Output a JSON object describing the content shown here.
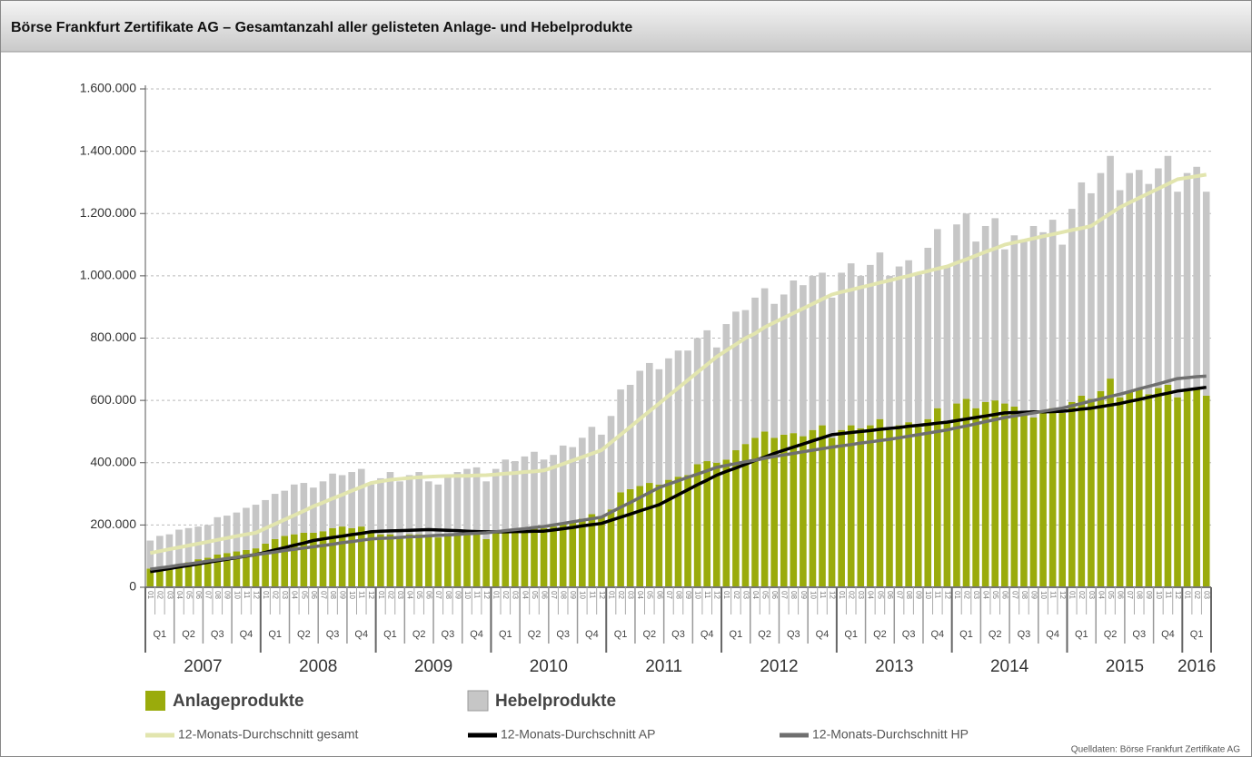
{
  "chart_data": {
    "type": "bar",
    "stacked": true,
    "title": "Börse Frankfurt Zertifikate AG – Gesamtanzahl aller gelisteten Anlage- und Hebelprodukte",
    "source": "Quelldaten: Börse Frankfurt Zertifikate AG",
    "grid": true,
    "ylim": [
      0,
      1600000
    ],
    "yticks": [
      0,
      {
        "value": 200000,
        "label": "200.000"
      },
      {
        "value": 400000,
        "label": "400.000"
      },
      {
        "value": 600000,
        "label": "600.000"
      },
      {
        "value": 800000,
        "label": "800.000"
      },
      {
        "value": 1000000,
        "label": "1.000.000"
      },
      {
        "value": 1200000,
        "label": "1.200.000"
      },
      {
        "value": 1400000,
        "label": "1.400.000"
      },
      {
        "value": 1600000,
        "label": "1.600.000"
      }
    ],
    "categories": [
      "01",
      "02",
      "03",
      "04",
      "05",
      "06",
      "07",
      "08",
      "09",
      "10",
      "11",
      "12",
      "01",
      "02",
      "03",
      "04",
      "05",
      "06",
      "07",
      "08",
      "09",
      "10",
      "11",
      "12",
      "01",
      "02",
      "03",
      "04",
      "05",
      "06",
      "07",
      "08",
      "09",
      "10",
      "11",
      "12",
      "01",
      "02",
      "03",
      "04",
      "05",
      "06",
      "07",
      "08",
      "09",
      "10",
      "11",
      "12",
      "01",
      "02",
      "03",
      "04",
      "05",
      "06",
      "07",
      "08",
      "09",
      "10",
      "11",
      "12",
      "01",
      "02",
      "03",
      "04",
      "05",
      "06",
      "07",
      "08",
      "09",
      "10",
      "11",
      "12",
      "01",
      "02",
      "03",
      "04",
      "05",
      "06",
      "07",
      "08",
      "09",
      "10",
      "11",
      "12",
      "01",
      "02",
      "03",
      "04",
      "05",
      "06",
      "07",
      "08",
      "09",
      "10",
      "11",
      "12",
      "01",
      "02",
      "03",
      "04",
      "05",
      "06",
      "07",
      "08",
      "09",
      "10",
      "11",
      "12",
      "01",
      "02",
      "03"
    ],
    "quarters": [
      "Q1",
      "Q2",
      "Q3",
      "Q4",
      "Q1",
      "Q2",
      "Q3",
      "Q4",
      "Q1",
      "Q2",
      "Q3",
      "Q4",
      "Q1",
      "Q2",
      "Q3",
      "Q4",
      "Q1",
      "Q2",
      "Q3",
      "Q4",
      "Q1",
      "Q2",
      "Q3",
      "Q4",
      "Q1",
      "Q2",
      "Q3",
      "Q4",
      "Q1",
      "Q2",
      "Q3",
      "Q4",
      "Q1",
      "Q2",
      "Q3",
      "Q4",
      "Q1"
    ],
    "years": [
      "2007",
      "2008",
      "2009",
      "2010",
      "2011",
      "2012",
      "2013",
      "2014",
      "2015",
      "2016"
    ],
    "series": [
      {
        "name": "Anlageprodukte",
        "kind": "bar",
        "color": "#9aab0c",
        "values": [
          60000,
          65000,
          70000,
          75000,
          80000,
          90000,
          95000,
          105000,
          110000,
          115000,
          120000,
          125000,
          140000,
          155000,
          165000,
          170000,
          175000,
          175000,
          180000,
          190000,
          195000,
          190000,
          195000,
          180000,
          170000,
          170000,
          160000,
          170000,
          170000,
          165000,
          160000,
          165000,
          170000,
          170000,
          175000,
          155000,
          175000,
          180000,
          185000,
          190000,
          195000,
          190000,
          195000,
          205000,
          210000,
          220000,
          235000,
          225000,
          250000,
          305000,
          315000,
          325000,
          335000,
          330000,
          345000,
          355000,
          360000,
          395000,
          405000,
          400000,
          410000,
          440000,
          460000,
          480000,
          500000,
          480000,
          490000,
          495000,
          485000,
          505000,
          520000,
          480000,
          505000,
          520000,
          510000,
          520000,
          540000,
          505000,
          520000,
          530000,
          515000,
          540000,
          575000,
          535000,
          590000,
          605000,
          575000,
          595000,
          600000,
          590000,
          580000,
          560000,
          545000,
          565000,
          575000,
          560000,
          595000,
          615000,
          605000,
          630000,
          670000,
          610000,
          630000,
          640000,
          620000,
          640000,
          650000,
          610000,
          630000,
          640000,
          615000
        ]
      },
      {
        "name": "Hebelprodukte",
        "kind": "bar",
        "color": "#c6c6c6",
        "values": [
          90000,
          100000,
          100000,
          110000,
          110000,
          105000,
          105000,
          120000,
          120000,
          125000,
          135000,
          140000,
          140000,
          145000,
          145000,
          160000,
          160000,
          145000,
          160000,
          175000,
          165000,
          180000,
          185000,
          150000,
          180000,
          200000,
          180000,
          190000,
          200000,
          175000,
          170000,
          195000,
          200000,
          210000,
          210000,
          185000,
          205000,
          230000,
          220000,
          230000,
          240000,
          220000,
          230000,
          250000,
          240000,
          260000,
          280000,
          265000,
          300000,
          330000,
          335000,
          370000,
          385000,
          370000,
          390000,
          405000,
          400000,
          405000,
          420000,
          370000,
          435000,
          445000,
          430000,
          450000,
          460000,
          430000,
          450000,
          490000,
          485000,
          495000,
          490000,
          450000,
          505000,
          520000,
          490000,
          515000,
          535000,
          495000,
          510000,
          520000,
          495000,
          550000,
          575000,
          495000,
          575000,
          595000,
          535000,
          565000,
          585000,
          495000,
          550000,
          550000,
          615000,
          575000,
          605000,
          540000,
          620000,
          685000,
          660000,
          700000,
          715000,
          665000,
          700000,
          700000,
          675000,
          705000,
          735000,
          660000,
          700000,
          710000,
          655000
        ]
      },
      {
        "name": "12-Monats-Durchschnitt gesamt",
        "kind": "line",
        "color": "#e2e5ae",
        "values": [
          110000,
          116000,
          122000,
          128000,
          134000,
          140000,
          146000,
          152000,
          158000,
          164000,
          170000,
          175000,
          189000,
          203000,
          217000,
          231000,
          245000,
          260000,
          272000,
          285000,
          297000,
          310000,
          322000,
          335000,
          340000,
          345000,
          348000,
          351000,
          353000,
          355000,
          356000,
          357000,
          358000,
          358000,
          359000,
          360000,
          362000,
          365000,
          367000,
          370000,
          372000,
          375000,
          385000,
          396000,
          407000,
          418000,
          429000,
          440000,
          465000,
          490000,
          515000,
          540000,
          565000,
          590000,
          615000,
          640000,
          665000,
          690000,
          715000,
          740000,
          760000,
          780000,
          800000,
          815000,
          835000,
          850000,
          865000,
          880000,
          895000,
          910000,
          925000,
          940000,
          948000,
          955000,
          963000,
          970000,
          978000,
          985000,
          993000,
          1000000,
          1008000,
          1015000,
          1023000,
          1030000,
          1042000,
          1053000,
          1065000,
          1077000,
          1088000,
          1100000,
          1107000,
          1113000,
          1120000,
          1127000,
          1133000,
          1140000,
          1147000,
          1153000,
          1160000,
          1180000,
          1200000,
          1220000,
          1235000,
          1250000,
          1265000,
          1280000,
          1295000,
          1310000,
          1315000,
          1320000,
          1325000
        ]
      },
      {
        "name": "12-Monats-Durchschnitt AP",
        "kind": "line",
        "color": "#000000",
        "values": [
          50000,
          55000,
          60000,
          65000,
          70000,
          75000,
          80000,
          85000,
          90000,
          95000,
          100000,
          105000,
          112000,
          120000,
          127000,
          135000,
          142000,
          150000,
          155000,
          160000,
          164000,
          169000,
          173000,
          178000,
          180000,
          181000,
          182000,
          183000,
          184000,
          185000,
          184000,
          183000,
          182000,
          180000,
          179000,
          178000,
          178000,
          178000,
          179000,
          179000,
          180000,
          180000,
          184000,
          188000,
          192000,
          197000,
          201000,
          205000,
          215000,
          225000,
          235000,
          245000,
          255000,
          265000,
          281000,
          297000,
          313000,
          329000,
          344000,
          360000,
          372000,
          383000,
          395000,
          407000,
          418000,
          430000,
          440000,
          450000,
          460000,
          470000,
          480000,
          490000,
          493000,
          497000,
          500000,
          503000,
          507000,
          510000,
          513000,
          517000,
          520000,
          523000,
          527000,
          530000,
          535000,
          540000,
          545000,
          550000,
          555000,
          560000,
          561000,
          562000,
          563000,
          563000,
          564000,
          565000,
          568000,
          572000,
          575000,
          580000,
          585000,
          590000,
          597000,
          603000,
          610000,
          617000,
          623000,
          630000,
          634000,
          638000,
          642000
        ]
      },
      {
        "name": "12-Monats-Durchschnitt HP",
        "kind": "line",
        "color": "#6f6f6f",
        "values": [
          58000,
          62000,
          66000,
          71000,
          75000,
          79000,
          84000,
          88000,
          92000,
          96000,
          101000,
          105000,
          109000,
          113000,
          118000,
          122000,
          126000,
          130000,
          134000,
          138000,
          143000,
          147000,
          151000,
          155000,
          157000,
          158000,
          160000,
          162000,
          163000,
          165000,
          167000,
          168000,
          170000,
          172000,
          173000,
          175000,
          178000,
          182000,
          185000,
          188000,
          192000,
          195000,
          200000,
          205000,
          210000,
          215000,
          220000,
          225000,
          241000,
          257000,
          272000,
          288000,
          304000,
          320000,
          331000,
          342000,
          353000,
          363000,
          374000,
          385000,
          391000,
          397000,
          403000,
          408000,
          414000,
          420000,
          425000,
          430000,
          435000,
          440000,
          445000,
          450000,
          454000,
          458000,
          463000,
          467000,
          471000,
          475000,
          480000,
          485000,
          490000,
          495000,
          500000,
          505000,
          512000,
          518000,
          525000,
          532000,
          538000,
          545000,
          550000,
          555000,
          560000,
          565000,
          570000,
          575000,
          583000,
          590000,
          598000,
          605000,
          613000,
          620000,
          628000,
          637000,
          645000,
          653000,
          662000,
          670000,
          673000,
          676000,
          678000
        ]
      }
    ]
  }
}
